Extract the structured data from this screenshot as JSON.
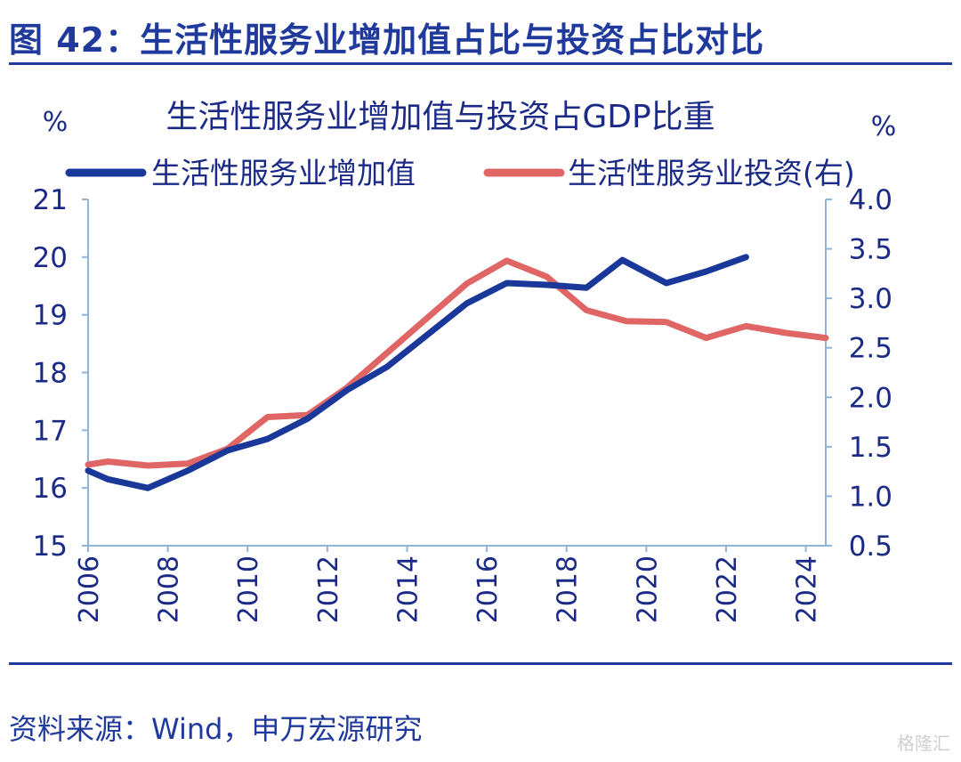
{
  "header": {
    "figure_title": "图 42：生活性服务业增加值占比与投资占比对比"
  },
  "footer": {
    "source": "资料来源：Wind，申万宏源研究",
    "watermark": "格隆汇"
  },
  "chart_data": {
    "type": "line",
    "title": "生活性服务业增加值与投资占GDP比重",
    "y_left_unit": "%",
    "y_right_unit": "%",
    "x_tick_labels": [
      "2006",
      "2008",
      "2010",
      "2012",
      "2014",
      "2016",
      "2018",
      "2020",
      "2022",
      "2024"
    ],
    "x_range": [
      2006,
      2024.5
    ],
    "y_left": {
      "range": [
        15,
        21
      ],
      "ticks": [
        "15",
        "16",
        "17",
        "18",
        "19",
        "20",
        "21"
      ]
    },
    "y_right": {
      "range": [
        0.5,
        4.0
      ],
      "ticks": [
        "0.5",
        "1.0",
        "1.5",
        "2.0",
        "2.5",
        "3.0",
        "3.5",
        "4.0"
      ]
    },
    "legend_position": "top",
    "grid": false,
    "series": [
      {
        "name": "生活性服务业增加值",
        "axis": "left",
        "color": "#1a3899",
        "x": [
          2006,
          2006.5,
          2007.5,
          2008.5,
          2009.5,
          2010.5,
          2011.5,
          2012.5,
          2013.5,
          2014.5,
          2015.5,
          2016.5,
          2017.5,
          2018.5,
          2019.4,
          2020.5,
          2021.5,
          2022.5
        ],
        "values": [
          16.3,
          16.15,
          16.0,
          16.3,
          16.65,
          16.85,
          17.2,
          17.7,
          18.1,
          18.65,
          19.2,
          19.55,
          19.52,
          19.47,
          19.95,
          19.55,
          19.75,
          20.0
        ]
      },
      {
        "name": "生活性服务业投资(右)",
        "axis": "right",
        "color": "#e06666",
        "x": [
          2006,
          2006.5,
          2007.5,
          2008.5,
          2009.5,
          2010.5,
          2011.5,
          2012.5,
          2013.5,
          2014.5,
          2015.5,
          2016.5,
          2017.5,
          2018.5,
          2019.5,
          2020.5,
          2021.5,
          2022.5,
          2023.5,
          2024.5
        ],
        "values": [
          1.32,
          1.35,
          1.31,
          1.33,
          1.48,
          1.8,
          1.82,
          2.1,
          2.45,
          2.8,
          3.15,
          3.38,
          3.22,
          2.88,
          2.77,
          2.76,
          2.6,
          2.72,
          2.65,
          2.6
        ]
      }
    ]
  }
}
